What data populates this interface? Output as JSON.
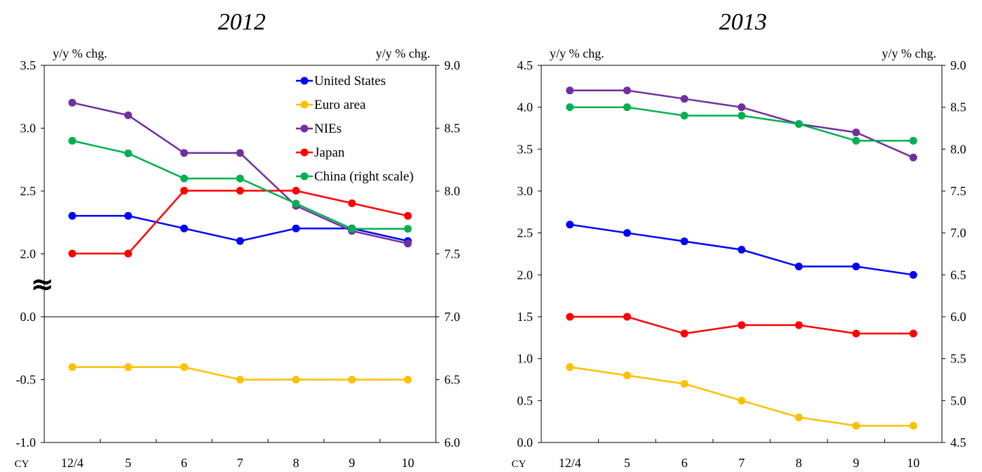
{
  "colors": {
    "United States": "#0000FF",
    "Euro area": "#FFC000",
    "NIEs": "#7030A0",
    "Japan": "#FF0000",
    "China (right scale)": "#00B050"
  },
  "axis_break_symbol": "≈",
  "chart_data": [
    {
      "type": "line",
      "title": "2012",
      "x_prefix": "CY",
      "categories": [
        "12/4",
        "5",
        "6",
        "7",
        "8",
        "9",
        "10"
      ],
      "left_unit": "y/y % chg.",
      "right_unit": "y/y % chg.",
      "left_axis_ticks": [
        "3.5",
        "3.0",
        "2.5",
        "2.0",
        "0.0",
        "-0.5",
        "-1.0"
      ],
      "right_axis_ticks": [
        "9.0",
        "8.5",
        "8.0",
        "7.5",
        "7.0",
        "6.5",
        "6.0"
      ],
      "left_axis_break": "between 0.0 and 2.0",
      "right_ylim": [
        6.0,
        9.0
      ],
      "legend_position": "top-right",
      "series": [
        {
          "name": "United States",
          "axis": "left",
          "values": [
            2.3,
            2.3,
            2.2,
            2.1,
            2.2,
            2.2,
            2.1
          ]
        },
        {
          "name": "Euro area",
          "axis": "left",
          "values": [
            -0.4,
            -0.4,
            -0.4,
            -0.5,
            -0.5,
            -0.5,
            -0.5
          ]
        },
        {
          "name": "NIEs",
          "axis": "left",
          "values": [
            3.2,
            3.1,
            2.8,
            2.8,
            2.38,
            2.18,
            2.08
          ]
        },
        {
          "name": "Japan",
          "axis": "left",
          "values": [
            2.0,
            2.0,
            2.5,
            2.5,
            2.5,
            2.4,
            2.3
          ]
        },
        {
          "name": "China (right scale)",
          "axis": "right",
          "values": [
            8.4,
            8.3,
            8.1,
            8.1,
            7.9,
            7.7,
            7.7
          ]
        }
      ]
    },
    {
      "type": "line",
      "title": "2013",
      "x_prefix": "CY",
      "categories": [
        "12/4",
        "5",
        "6",
        "7",
        "8",
        "9",
        "10"
      ],
      "left_unit": "y/y % chg.",
      "right_unit": "y/y % chg.",
      "left_ylim": [
        0.0,
        4.5
      ],
      "right_ylim": [
        4.5,
        9.0
      ],
      "left_axis_ticks": [
        "4.5",
        "4.0",
        "3.5",
        "3.0",
        "2.5",
        "2.0",
        "1.5",
        "1.0",
        "0.5",
        "0.0"
      ],
      "right_axis_ticks": [
        "9.0",
        "8.5",
        "8.0",
        "7.5",
        "7.0",
        "6.5",
        "6.0",
        "5.5",
        "5.0",
        "4.5"
      ],
      "series": [
        {
          "name": "United States",
          "axis": "left",
          "values": [
            2.6,
            2.5,
            2.4,
            2.3,
            2.1,
            2.1,
            2.0
          ]
        },
        {
          "name": "Euro area",
          "axis": "left",
          "values": [
            0.9,
            0.8,
            0.7,
            0.5,
            0.3,
            0.2,
            0.2
          ]
        },
        {
          "name": "NIEs",
          "axis": "left",
          "values": [
            4.2,
            4.2,
            4.1,
            4.0,
            3.8,
            3.7,
            3.4
          ]
        },
        {
          "name": "Japan",
          "axis": "left",
          "values": [
            1.5,
            1.5,
            1.3,
            1.4,
            1.4,
            1.3,
            1.3
          ]
        },
        {
          "name": "China (right scale)",
          "axis": "right",
          "values": [
            8.5,
            8.5,
            8.4,
            8.4,
            8.3,
            8.1,
            8.1
          ]
        }
      ]
    }
  ]
}
